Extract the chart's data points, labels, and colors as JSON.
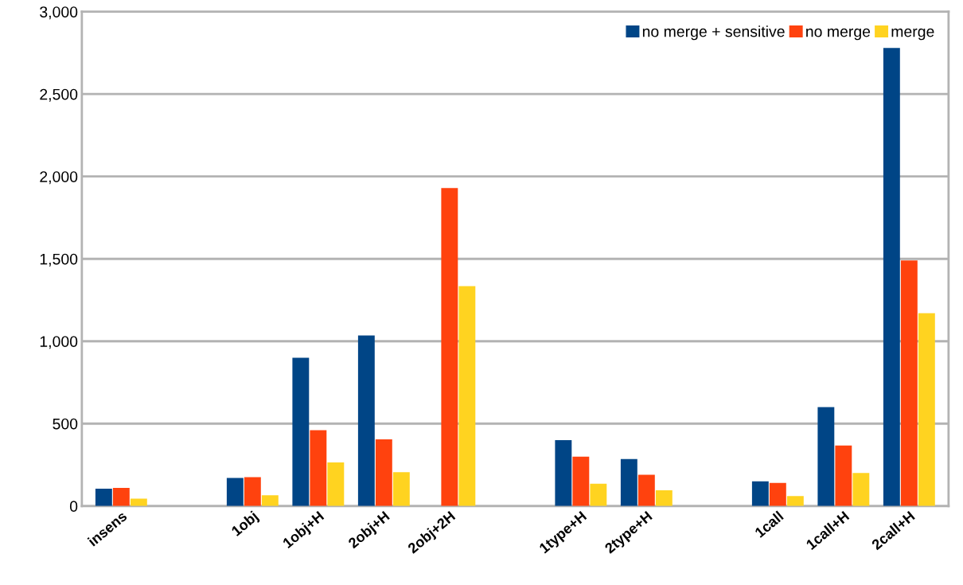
{
  "chart_data": {
    "type": "bar",
    "categories": [
      "insens",
      null,
      "1obj",
      "1obj+H",
      "2obj+H",
      "2obj+2H",
      null,
      "1type+H",
      "2type+H",
      null,
      "1call",
      "1call+H",
      "2call+H"
    ],
    "series": [
      {
        "name": "no merge + sensitive",
        "color": "#004586",
        "values": [
          105,
          null,
          170,
          900,
          1035,
          null,
          null,
          400,
          285,
          null,
          150,
          600,
          2780
        ]
      },
      {
        "name": "no merge",
        "color": "#ff420e",
        "values": [
          110,
          null,
          175,
          460,
          405,
          1930,
          null,
          300,
          190,
          null,
          140,
          367,
          1490
        ]
      },
      {
        "name": "merge",
        "color": "#ffd320",
        "values": [
          45,
          null,
          65,
          265,
          205,
          1335,
          null,
          135,
          95,
          null,
          60,
          200,
          1170
        ]
      }
    ],
    "ylim": [
      0,
      3000
    ],
    "yticks": [
      {
        "value": 0,
        "label": "0"
      },
      {
        "value": 500,
        "label": "500"
      },
      {
        "value": 1000,
        "label": "1,000"
      },
      {
        "value": 1500,
        "label": "1,500"
      },
      {
        "value": 2000,
        "label": "2,000"
      },
      {
        "value": 2500,
        "label": "2,500"
      },
      {
        "value": 3000,
        "label": "3,000"
      }
    ],
    "grid": "y",
    "legend": "top right"
  }
}
